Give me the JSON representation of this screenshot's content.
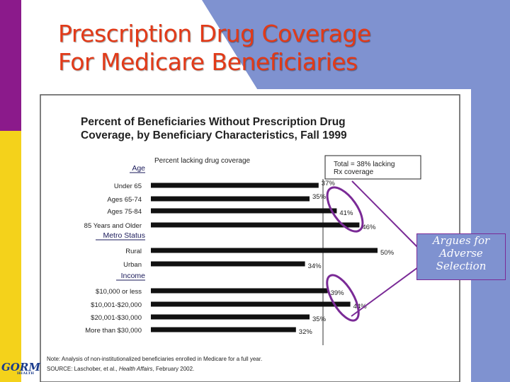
{
  "slide": {
    "title_line1": "Prescription Drug Coverage",
    "title_line2": "For Medicare Beneficiaries",
    "logo_text": "GORM",
    "logo_sub": "HEALTH"
  },
  "callout": {
    "line1": "Argues for",
    "line2": "Adverse",
    "line3": "Selection"
  },
  "colors": {
    "title": "#e23a18",
    "left_bar_top": "#8b1a8b",
    "left_bar_bottom": "#f4d21b",
    "background_blue": "#7f92d0",
    "bar": "#111111",
    "highlight_ellipse": "#7a2a96"
  },
  "chart_data": {
    "type": "bar",
    "orientation": "horizontal",
    "title_line1": "Percent of Beneficiaries Without Prescription Drug",
    "title_line2": "Coverage, by Beneficiary Characteristics, Fall 1999",
    "axis_label": "Percent lacking drug coverage",
    "total_box_line1": "Total = 38% lacking",
    "total_box_line2": "Rx coverage",
    "total_reference_value": 38,
    "xlim": [
      0,
      50
    ],
    "groups": [
      {
        "name": "Age",
        "categories": [
          "Under 65",
          "Ages 65-74",
          "Ages 75-84",
          "85 Years and Older"
        ],
        "values": [
          37,
          35,
          41,
          46
        ],
        "labels": [
          "37%",
          "35%",
          "41%",
          "46%"
        ]
      },
      {
        "name": "Metro Status",
        "categories": [
          "Rural",
          "Urban"
        ],
        "values": [
          50,
          34
        ],
        "labels": [
          "50%",
          "34%"
        ]
      },
      {
        "name": "Income",
        "categories": [
          "$10,000 or less",
          "$10,001-$20,000",
          "$20,001-$30,000",
          "More than $30,000"
        ],
        "values": [
          39,
          44,
          35,
          32
        ],
        "labels": [
          "39%",
          "44%",
          "35%",
          "32%"
        ]
      }
    ],
    "note": "Note: Analysis of non-institutionalized beneficiaries enrolled in Medicare for a full year.",
    "source_prefix": "SOURCE: Laschober, et al., ",
    "source_journal": "Health Affairs",
    "source_suffix": ", February 2002."
  }
}
